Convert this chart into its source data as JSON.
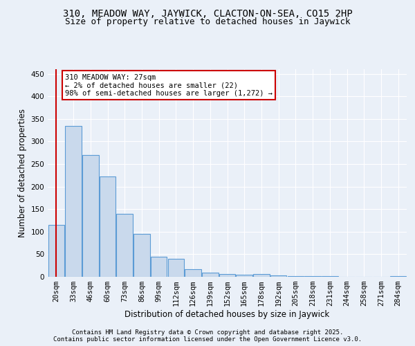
{
  "title": "310, MEADOW WAY, JAYWICK, CLACTON-ON-SEA, CO15 2HP",
  "subtitle": "Size of property relative to detached houses in Jaywick",
  "xlabel": "Distribution of detached houses by size in Jaywick",
  "ylabel": "Number of detached properties",
  "bar_labels": [
    "20sqm",
    "33sqm",
    "46sqm",
    "60sqm",
    "73sqm",
    "86sqm",
    "99sqm",
    "112sqm",
    "126sqm",
    "139sqm",
    "152sqm",
    "165sqm",
    "178sqm",
    "192sqm",
    "205sqm",
    "218sqm",
    "231sqm",
    "244sqm",
    "258sqm",
    "271sqm",
    "284sqm"
  ],
  "bar_values": [
    115,
    335,
    270,
    222,
    140,
    95,
    45,
    40,
    17,
    9,
    6,
    5,
    6,
    3,
    2,
    1,
    1,
    0,
    0,
    0,
    1
  ],
  "bar_color": "#c9d9ec",
  "bar_edge_color": "#5b9bd5",
  "highlight_color": "#cc0000",
  "annotation_text": "310 MEADOW WAY: 27sqm\n← 2% of detached houses are smaller (22)\n98% of semi-detached houses are larger (1,272) →",
  "annotation_box_color": "#ffffff",
  "annotation_box_edge": "#cc0000",
  "ylim": [
    0,
    460
  ],
  "yticks": [
    0,
    50,
    100,
    150,
    200,
    250,
    300,
    350,
    400,
    450
  ],
  "footer1": "Contains HM Land Registry data © Crown copyright and database right 2025.",
  "footer2": "Contains public sector information licensed under the Open Government Licence v3.0.",
  "bg_color": "#eaf0f8",
  "plot_bg_color": "#eaf0f8",
  "title_fontsize": 10,
  "subtitle_fontsize": 9,
  "axis_label_fontsize": 8.5,
  "tick_fontsize": 7.5,
  "footer_fontsize": 6.5
}
